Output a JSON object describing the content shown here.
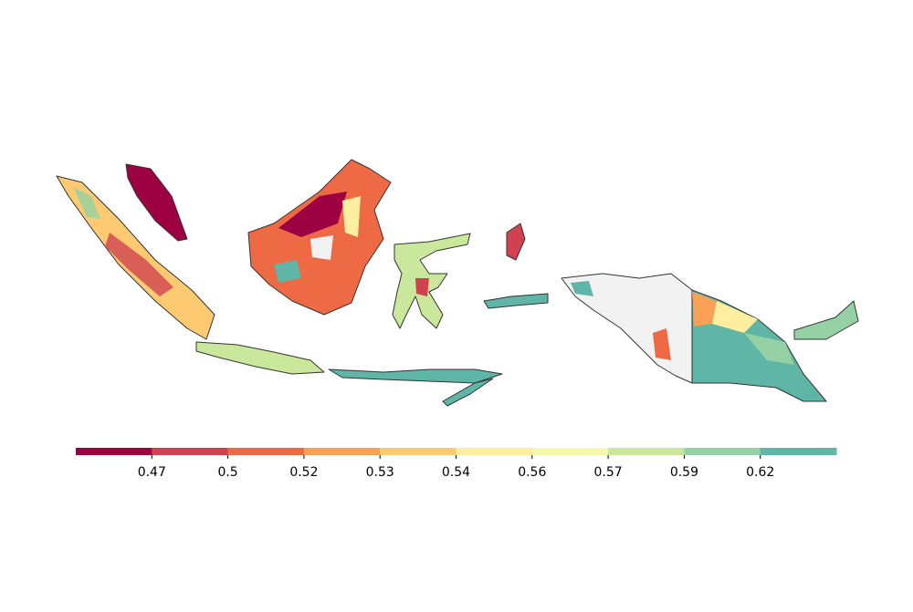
{
  "chart_data": {
    "type": "colorbar",
    "colors": [
      "#9e0142",
      "#d0424f",
      "#ee6a45",
      "#f9a057",
      "#fdca72",
      "#fdeea0",
      "#f3f8aa",
      "#c9e89b",
      "#95d1a4",
      "#5fb5a6"
    ],
    "ticks": [
      0.47,
      0.5,
      0.52,
      0.53,
      0.54,
      0.56,
      0.57,
      0.59,
      0.62
    ]
  }
}
